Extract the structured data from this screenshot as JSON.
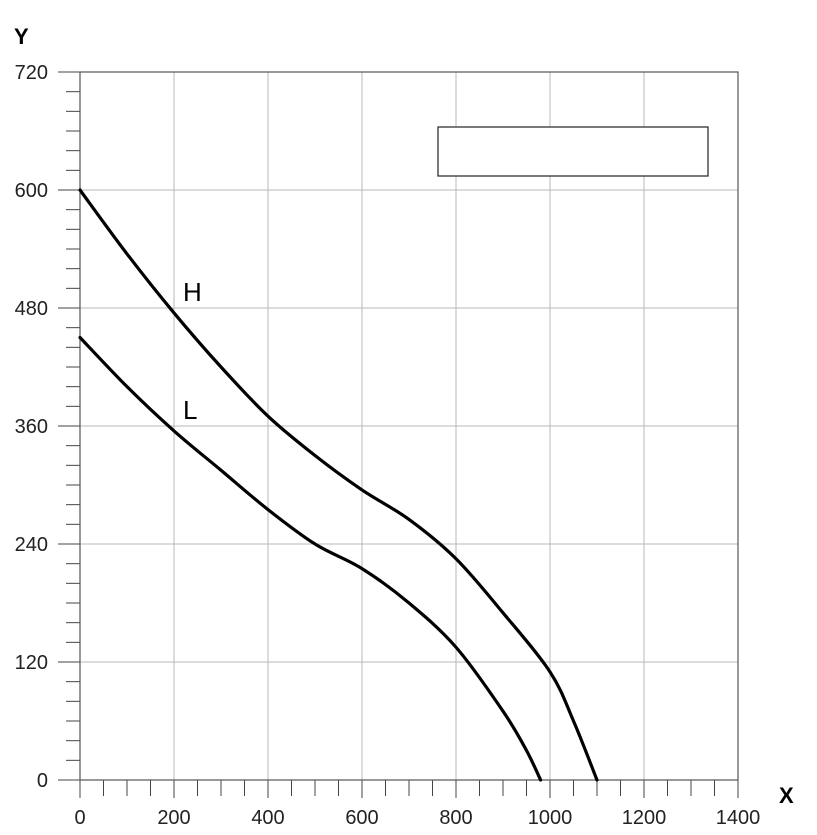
{
  "chart_data": {
    "type": "line",
    "xlabel": "X",
    "ylabel": "Y",
    "xlim": [
      0,
      1400
    ],
    "ylim": [
      0,
      720
    ],
    "x_ticks": [
      0,
      200,
      400,
      600,
      800,
      1000,
      1200,
      1400
    ],
    "y_ticks": [
      0,
      120,
      240,
      360,
      480,
      600,
      720
    ],
    "x_minor_step": 50,
    "y_minor_step": 20,
    "grid": true,
    "legend_placement": "top-right",
    "series": [
      {
        "name": "H",
        "x": [
          0,
          100,
          200,
          300,
          400,
          500,
          600,
          700,
          800,
          900,
          1000,
          1050,
          1100
        ],
        "y": [
          600,
          535,
          475,
          420,
          370,
          330,
          295,
          265,
          225,
          170,
          110,
          60,
          0
        ]
      },
      {
        "name": "L",
        "x": [
          0,
          100,
          200,
          300,
          400,
          500,
          600,
          700,
          800,
          900,
          950,
          980
        ],
        "y": [
          450,
          400,
          355,
          315,
          275,
          240,
          215,
          180,
          135,
          70,
          30,
          0
        ]
      }
    ]
  }
}
